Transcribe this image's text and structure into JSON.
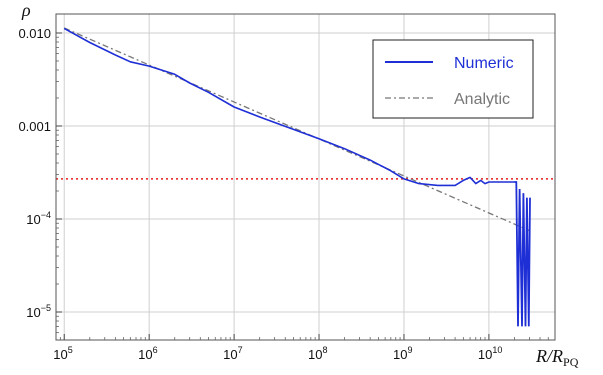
{
  "chart_data": {
    "type": "line",
    "ylabel": "ρ",
    "xlabel": {
      "main": "R",
      "slash": "/",
      "denominator": "R",
      "subscript": "PQ"
    },
    "x_scale": "log",
    "y_scale": "log",
    "xlim": [
      80000,
      60000000000
    ],
    "ylim": [
      5e-06,
      0.016
    ],
    "grid": true,
    "legend_position": "top-right",
    "x_ticks": [
      {
        "value": 100000,
        "base": "10",
        "exp": "5"
      },
      {
        "value": 1000000,
        "base": "10",
        "exp": "6"
      },
      {
        "value": 10000000,
        "base": "10",
        "exp": "7"
      },
      {
        "value": 100000000,
        "base": "10",
        "exp": "8"
      },
      {
        "value": 1000000000,
        "base": "10",
        "exp": "9"
      },
      {
        "value": 10000000000,
        "base": "10",
        "exp": "10"
      }
    ],
    "y_ticks": [
      {
        "value": 0.01,
        "label": "0.010"
      },
      {
        "value": 0.001,
        "label": "0.001"
      },
      {
        "value": 0.0001,
        "base": "10",
        "exp": "−4"
      },
      {
        "value": 1e-05,
        "base": "10",
        "exp": "−5"
      }
    ],
    "series": [
      {
        "name": "Numeric",
        "color": "#1f2fd6",
        "style": "solid",
        "x": [
          100000,
          200000,
          400000,
          600000,
          1000000,
          2000000,
          3000000,
          5000000,
          10000000,
          20000000,
          50000000,
          100000000,
          200000000,
          400000000,
          700000000,
          1000000000,
          1500000000,
          2500000000,
          4000000000,
          5000000000,
          6000000000,
          7000000000,
          8000000000,
          9000000000,
          10000000000,
          13000000000,
          16000000000,
          20000000000
        ],
        "y": [
          0.0112,
          0.0079,
          0.0058,
          0.0049,
          0.0044,
          0.0036,
          0.0029,
          0.0023,
          0.0016,
          0.00125,
          0.00092,
          0.00073,
          0.00057,
          0.00043,
          0.00033,
          0.00027,
          0.00024,
          0.00023,
          0.00023,
          0.00026,
          0.00028,
          0.00024,
          0.00026,
          0.00024,
          0.00025,
          0.00025,
          0.00025,
          0.00025
        ],
        "tail_x": [
          20000000000,
          21000000000,
          22000000000,
          23000000000,
          24500000000,
          25500000000,
          27000000000,
          28000000000,
          29500000000,
          30500000000
        ],
        "tail_y": [
          0.00025,
          0.00025,
          7e-06,
          0.00021,
          7e-06,
          0.00019,
          7e-06,
          0.00017,
          7e-06,
          0.00017
        ]
      },
      {
        "name": "Analytic",
        "color": "#777777",
        "style": "dashdot",
        "x": [
          100000,
          30000000000
        ],
        "y": [
          0.0113,
          7.5e-05
        ]
      }
    ],
    "reference_line": {
      "y": 0.00027,
      "color": "#e31a1c",
      "style": "dotted"
    }
  }
}
